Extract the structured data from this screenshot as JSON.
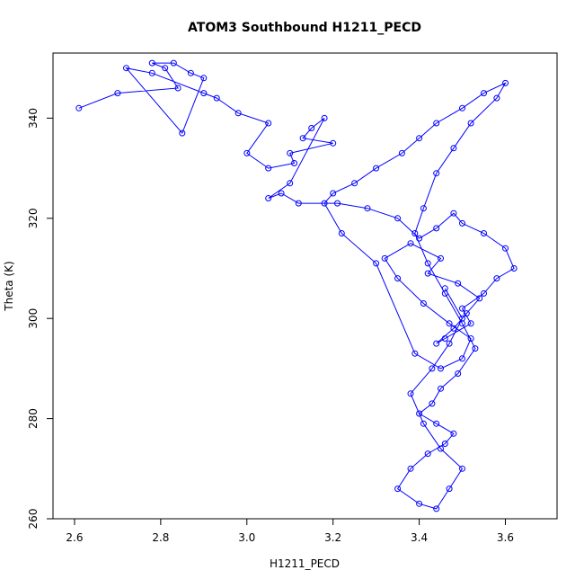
{
  "chart_data": {
    "type": "line",
    "title": "ATOM3 Southbound H1211_PECD",
    "xlabel": "H1211_PECD",
    "ylabel": "Theta (K)",
    "xlim": [
      2.55,
      3.72
    ],
    "ylim": [
      260,
      353
    ],
    "x_ticks": [
      "2.6",
      "2.8",
      "3.0",
      "3.2",
      "3.4",
      "3.6"
    ],
    "y_ticks": [
      "260",
      "280",
      "300",
      "320",
      "340"
    ],
    "series_color": "#0000ff",
    "marker": "open-circle",
    "grid": false,
    "series": [
      {
        "x": [
          2.61,
          2.7,
          2.84,
          2.81,
          2.78,
          2.83,
          2.87,
          2.9,
          2.85,
          2.72,
          2.78,
          2.9,
          2.93,
          2.98,
          3.05,
          3.0,
          3.05,
          3.11,
          3.1,
          3.2,
          3.13,
          3.15,
          3.18,
          3.1,
          3.05,
          3.08,
          3.12,
          3.21,
          3.28,
          3.35,
          3.4,
          3.44,
          3.48,
          3.5,
          3.55,
          3.6,
          3.62,
          3.58,
          3.55,
          3.5,
          3.52,
          3.46,
          3.44,
          3.48,
          3.51,
          3.54,
          3.49,
          3.42,
          3.45,
          3.38,
          3.32,
          3.35,
          3.41,
          3.47,
          3.52,
          3.5,
          3.45,
          3.39,
          3.3,
          3.22,
          3.18,
          3.2,
          3.25,
          3.3,
          3.36,
          3.4,
          3.44,
          3.5,
          3.55,
          3.6,
          3.58,
          3.52,
          3.48,
          3.44,
          3.41,
          3.39,
          3.42,
          3.46,
          3.5,
          3.53,
          3.49,
          3.45,
          3.43,
          3.4,
          3.44,
          3.48,
          3.46,
          3.42,
          3.38,
          3.35,
          3.4,
          3.44,
          3.47,
          3.5,
          3.45,
          3.41,
          3.38,
          3.43,
          3.47,
          3.5,
          3.46
        ],
        "y": [
          342,
          345,
          346,
          350,
          351,
          351,
          349,
          348,
          337,
          350,
          349,
          345,
          344,
          341,
          339,
          333,
          330,
          331,
          333,
          335,
          336,
          338,
          340,
          327,
          324,
          325,
          323,
          323,
          322,
          320,
          316,
          318,
          321,
          319,
          317,
          314,
          310,
          308,
          305,
          302,
          299,
          296,
          295,
          298,
          301,
          304,
          307,
          309,
          312,
          315,
          312,
          308,
          303,
          299,
          296,
          292,
          290,
          293,
          311,
          317,
          323,
          325,
          327,
          330,
          333,
          336,
          339,
          342,
          345,
          347,
          344,
          339,
          334,
          329,
          322,
          317,
          311,
          305,
          299,
          294,
          289,
          286,
          283,
          281,
          279,
          277,
          275,
          273,
          270,
          266,
          263,
          262,
          266,
          270,
          274,
          279,
          285,
          290,
          295,
          300,
          306
        ]
      }
    ]
  }
}
